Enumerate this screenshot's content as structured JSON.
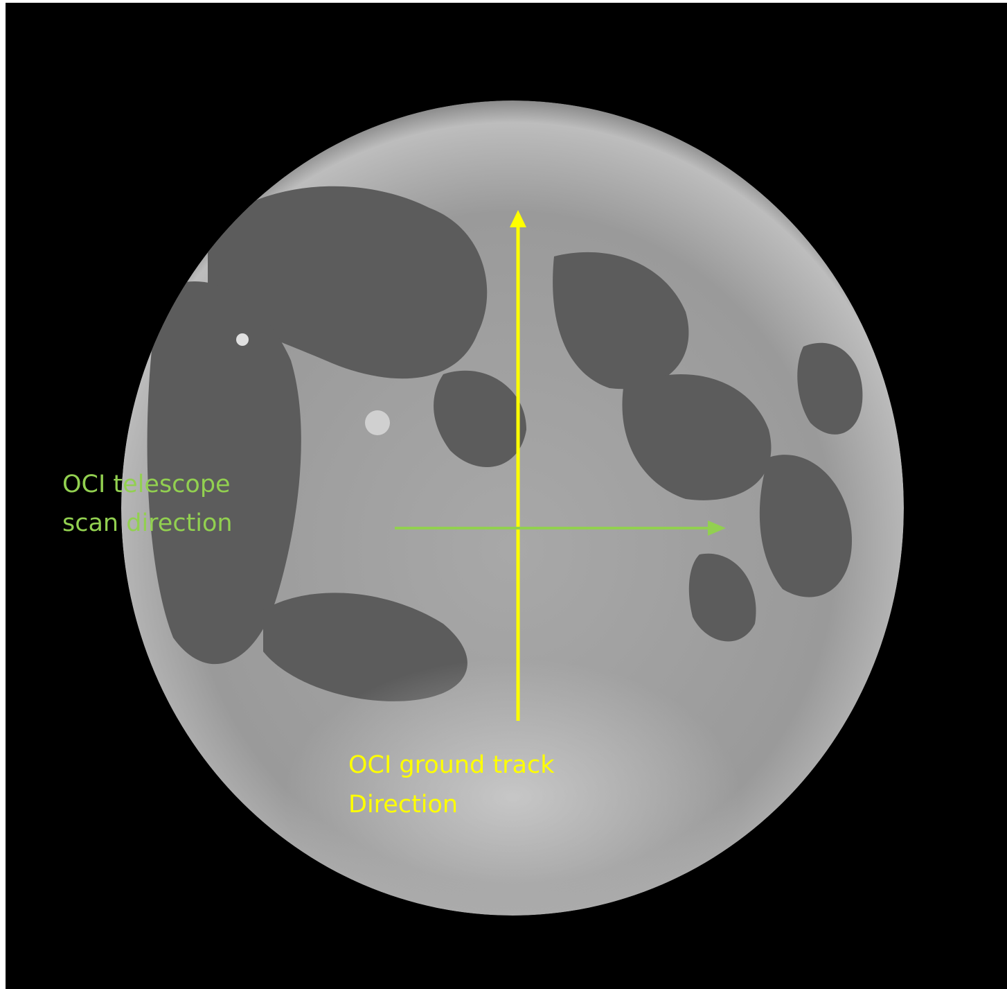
{
  "annotations": {
    "scan_direction": {
      "lines": [
        "OCI telescope",
        "scan direction"
      ]
    },
    "ground_track": {
      "lines": [
        "OCI ground track",
        "Direction"
      ]
    }
  }
}
